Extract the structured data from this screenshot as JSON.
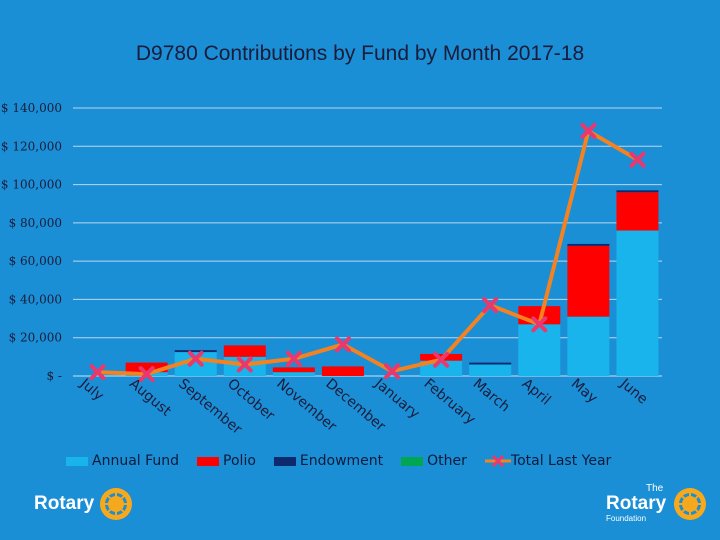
{
  "chart_data": {
    "type": "bar",
    "stacked": true,
    "title": "D9780 Contributions by Fund by Month 2017-18",
    "categories": [
      "July",
      "August",
      "September",
      "October",
      "November",
      "December",
      "January",
      "February",
      "March",
      "April",
      "May",
      "June"
    ],
    "ylim": [
      0,
      140000
    ],
    "yticks": [
      0,
      20000,
      40000,
      60000,
      80000,
      100000,
      120000,
      140000
    ],
    "ytick_labels": [
      "$ -",
      "$ 20,000",
      "$ 40,000",
      "$ 60,000",
      "$ 80,000",
      "$ 100,000",
      "$ 120,000",
      "$ 140,000"
    ],
    "grid": true,
    "legend_position": "bottom",
    "series": [
      {
        "name": "Annual Fund",
        "type": "bar",
        "color": "#19b4ec",
        "values": [
          0,
          2000,
          12500,
          10000,
          2000,
          0,
          0,
          8000,
          6000,
          27000,
          31000,
          76000
        ]
      },
      {
        "name": "Polio",
        "type": "bar",
        "color": "#ff0000",
        "values": [
          0,
          5000,
          0,
          6000,
          2500,
          5000,
          0,
          3500,
          0,
          9500,
          37000,
          20000
        ]
      },
      {
        "name": "Endowment",
        "type": "bar",
        "color": "#0e2a6e",
        "values": [
          0,
          0,
          1000,
          0,
          0,
          0,
          0,
          0,
          1000,
          0,
          1000,
          1000
        ]
      },
      {
        "name": "Other",
        "type": "bar",
        "color": "#00a651",
        "values": [
          0,
          0,
          0,
          0,
          0,
          0,
          0,
          0,
          0,
          0,
          0,
          0
        ]
      },
      {
        "name": "Total Last Year",
        "type": "line",
        "color": "#f58220",
        "marker_color": "#e8386d",
        "values": [
          2000,
          1000,
          9000,
          6000,
          9000,
          16500,
          2500,
          8500,
          37000,
          27000,
          128000,
          113000
        ]
      }
    ]
  },
  "logos": {
    "left_text": "Rotary",
    "right_top": "The",
    "right_main": "Rotary",
    "right_sub": "Foundation"
  }
}
